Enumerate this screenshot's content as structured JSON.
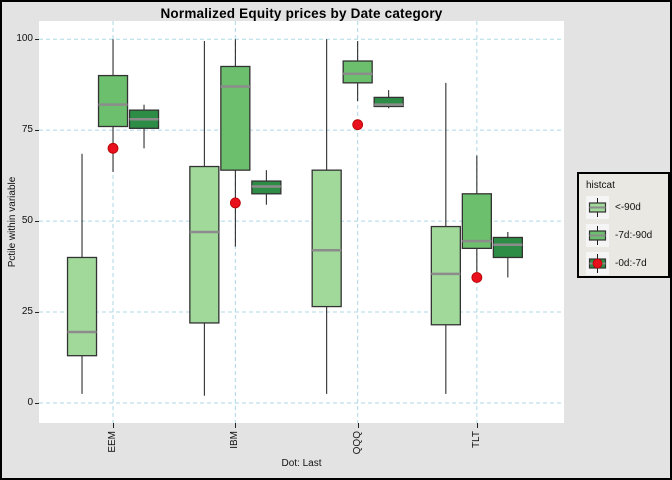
{
  "caption": "Dot: Last",
  "colors": {
    "figure_bg": "#e3e3e3",
    "panel_bg": "#ffffff",
    "gridline": "#add8e6",
    "box_border": "#333333",
    "median_line": "#8c8c8c",
    "whisker": "#1a1a1a",
    "dot_red": "#e8101c",
    "legend_bg": "#eae8e2"
  },
  "legend": {
    "title": "histcat",
    "items": [
      {
        "label": "<-90d",
        "fill": "#a1d99b",
        "dot": false
      },
      {
        "label": "-7d:-90d",
        "fill": "#6cbf6c",
        "dot": false
      },
      {
        "label": "-0d:-7d",
        "fill": "#2d8c45",
        "dot": true
      }
    ]
  },
  "chart_data": {
    "type": "boxplot",
    "title": "Normalized Equity prices by Date category",
    "xlabel": "",
    "ylabel": "Pctile within variable",
    "categories": [
      "EEM",
      "IBM",
      "QQQ",
      "TLT"
    ],
    "y_ticks": [
      0,
      25,
      50,
      75,
      100
    ],
    "ylim": [
      -5.5,
      105
    ],
    "grid": "dashed",
    "legend_position": "right",
    "series": [
      {
        "name": "<-90d",
        "fill": "#a1d99b",
        "boxes": [
          {
            "category": "EEM",
            "min": 2.5,
            "q1": 13,
            "median": 19.5,
            "q3": 40,
            "max": 68.5
          },
          {
            "category": "IBM",
            "min": 2,
            "q1": 22,
            "median": 47,
            "q3": 65,
            "max": 99.5
          },
          {
            "category": "QQQ",
            "min": 2.5,
            "q1": 26.5,
            "median": 42,
            "q3": 64,
            "max": 100
          },
          {
            "category": "TLT",
            "min": 2.5,
            "q1": 21.5,
            "median": 35.5,
            "q3": 48.5,
            "max": 88
          }
        ]
      },
      {
        "name": "-7d:-90d",
        "fill": "#6cbf6c",
        "boxes": [
          {
            "category": "EEM",
            "min": 63.5,
            "q1": 76,
            "median": 82,
            "q3": 90,
            "max": 100
          },
          {
            "category": "IBM",
            "min": 43,
            "q1": 64,
            "median": 87,
            "q3": 92.5,
            "max": 100
          },
          {
            "category": "QQQ",
            "min": 83,
            "q1": 88,
            "median": 90.5,
            "q3": 94,
            "max": 99.5
          },
          {
            "category": "TLT",
            "min": 34.5,
            "q1": 42.5,
            "median": 44.5,
            "q3": 57.5,
            "max": 68
          }
        ]
      },
      {
        "name": "-0d:-7d",
        "fill": "#2d8c45",
        "boxes": [
          {
            "category": "EEM",
            "min": 70,
            "q1": 75.5,
            "median": 78,
            "q3": 80.5,
            "max": 82
          },
          {
            "category": "IBM",
            "min": 54.5,
            "q1": 57.5,
            "median": 59.5,
            "q3": 61,
            "max": 64
          },
          {
            "category": "QQQ",
            "min": 81,
            "q1": 81.5,
            "median": 82,
            "q3": 84,
            "max": 86
          },
          {
            "category": "TLT",
            "min": 34.5,
            "q1": 40,
            "median": 43.5,
            "q3": 45.5,
            "max": 47
          }
        ]
      }
    ],
    "last_dots": {
      "name": "Last",
      "color": "#e8101c",
      "values": [
        {
          "category": "EEM",
          "value": 70
        },
        {
          "category": "IBM",
          "value": 55
        },
        {
          "category": "QQQ",
          "value": 76.5
        },
        {
          "category": "TLT",
          "value": 34.5
        }
      ]
    }
  }
}
